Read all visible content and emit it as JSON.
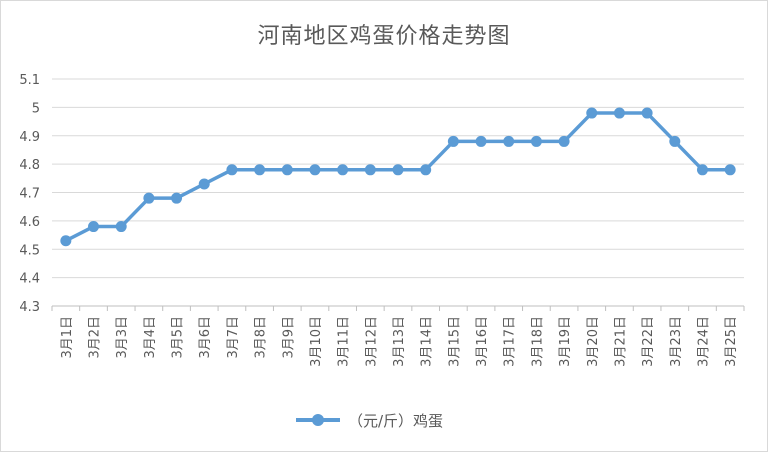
{
  "chart_data": {
    "type": "line",
    "title": "河南地区鸡蛋价格走势图",
    "categories": [
      "3月1日",
      "3月2日",
      "3月3日",
      "3月4日",
      "3月5日",
      "3月6日",
      "3月7日",
      "3月8日",
      "3月9日",
      "3月10日",
      "3月11日",
      "3月12日",
      "3月13日",
      "3月14日",
      "3月15日",
      "3月16日",
      "3月17日",
      "3月18日",
      "3月19日",
      "3月20日",
      "3月21日",
      "3月22日",
      "3月23日",
      "3月24日",
      "3月25日"
    ],
    "series": [
      {
        "name": "（元/斤）鸡蛋",
        "values": [
          4.53,
          4.58,
          4.58,
          4.68,
          4.68,
          4.73,
          4.78,
          4.78,
          4.78,
          4.78,
          4.78,
          4.78,
          4.78,
          4.78,
          4.88,
          4.88,
          4.88,
          4.88,
          4.88,
          4.98,
          4.98,
          4.98,
          4.88,
          4.78,
          4.78
        ],
        "color": "#5b9bd5"
      }
    ],
    "yticks": [
      "4.3",
      "4.4",
      "4.5",
      "4.6",
      "4.7",
      "4.8",
      "4.9",
      "5",
      "5.1"
    ],
    "ylim": [
      4.3,
      5.1
    ],
    "grid": true,
    "legend": "bottom"
  }
}
